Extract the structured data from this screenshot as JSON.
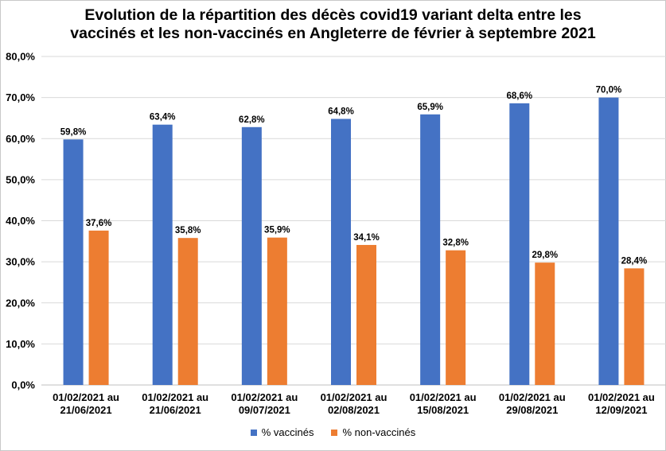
{
  "chart_data": {
    "type": "bar",
    "title_lines": [
      "Evolution de la répartition des décès covid19 variant delta entre les",
      "vaccinés et les non-vaccinés en Angleterre de février à septembre 2021"
    ],
    "categories": [
      [
        "01/02/2021 au",
        "21/06/2021"
      ],
      [
        "01/02/2021 au",
        "21/06/2021"
      ],
      [
        "01/02/2021 au",
        "09/07/2021"
      ],
      [
        "01/02/2021 au",
        "02/08/2021"
      ],
      [
        "01/02/2021 au",
        "15/08/2021"
      ],
      [
        "01/02/2021 au",
        "29/08/2021"
      ],
      [
        "01/02/2021 au",
        "12/09/2021"
      ]
    ],
    "series": [
      {
        "name": "% vaccinés",
        "color": "#4472c4",
        "values": [
          59.8,
          63.4,
          62.8,
          64.8,
          65.9,
          68.6,
          70.0
        ],
        "labels": [
          "59,8%",
          "63,4%",
          "62,8%",
          "64,8%",
          "65,9%",
          "68,6%",
          "70,0%"
        ]
      },
      {
        "name": "% non-vaccinés",
        "color": "#ed7d31",
        "values": [
          37.6,
          35.8,
          35.9,
          34.1,
          32.8,
          29.8,
          28.4
        ],
        "labels": [
          "37,6%",
          "35,8%",
          "35,9%",
          "34,1%",
          "32,8%",
          "29,8%",
          "28,4%"
        ]
      }
    ],
    "ylim": [
      0,
      80
    ],
    "yticks": [
      0,
      10,
      20,
      30,
      40,
      50,
      60,
      70,
      80
    ],
    "ytick_labels": [
      "0,0%",
      "10,0%",
      "20,0%",
      "30,0%",
      "40,0%",
      "50,0%",
      "60,0%",
      "70,0%",
      "80,0%"
    ],
    "grid": true,
    "legend_position": "bottom"
  }
}
